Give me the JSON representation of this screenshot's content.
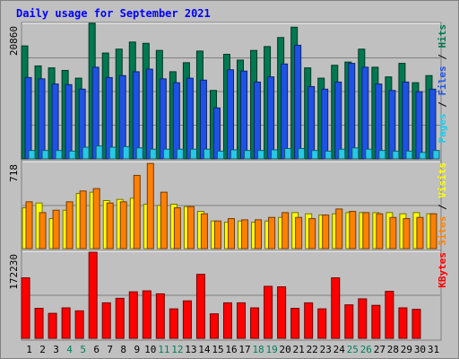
{
  "chart_data": {
    "type": "bar",
    "title": "Daily usage for September 2021",
    "categories": [
      "1",
      "2",
      "3",
      "4",
      "5",
      "6",
      "7",
      "8",
      "9",
      "10",
      "11",
      "12",
      "13",
      "14",
      "15",
      "16",
      "17",
      "18",
      "19",
      "20",
      "21",
      "22",
      "23",
      "24",
      "25",
      "26",
      "27",
      "28",
      "29",
      "30",
      "31"
    ],
    "weekend_days": [
      "4",
      "5",
      "11",
      "12",
      "18",
      "19",
      "25",
      "26"
    ],
    "panels": [
      {
        "id": "hits-files-pages",
        "ymax_label": "20860",
        "ylim": [
          0,
          20860
        ],
        "legend": [
          "Pages",
          "Files",
          "Hits"
        ],
        "series": [
          {
            "name": "Hits",
            "color": "#007850",
            "values": [
              17500,
              14400,
              14100,
              13700,
              12500,
              21000,
              16400,
              17000,
              18100,
              17900,
              16800,
              13500,
              14900,
              16700,
              10600,
              16200,
              15300,
              16800,
              17400,
              18800,
              20400,
              14100,
              12500,
              14500,
              15000,
              17000,
              14200,
              12700,
              14800,
              11800,
              12900
            ]
          },
          {
            "name": "Files",
            "color": "#1e52e6",
            "values": [
              12600,
              12400,
              11600,
              11500,
              10800,
              14200,
              12600,
              12900,
              13500,
              13900,
              12400,
              11800,
              12500,
              12200,
              7900,
              13800,
              13600,
              11900,
              12700,
              14700,
              17600,
              11200,
              10800,
              11900,
              14800,
              14200,
              11600,
              10600,
              11900,
              10400,
              10800
            ]
          },
          {
            "name": "Pages",
            "color": "#28c8e6",
            "values": [
              1300,
              1300,
              1300,
              1200,
              1800,
              2000,
              1800,
              1900,
              1700,
              1500,
              1500,
              1500,
              1500,
              1500,
              1200,
              1400,
              1300,
              1300,
              1400,
              1600,
              1600,
              1300,
              1200,
              1500,
              1700,
              1500,
              1300,
              1200,
              1200,
              1000,
              1300
            ]
          }
        ]
      },
      {
        "id": "visits-sites",
        "ymax_label": "718",
        "ylim": [
          0,
          718
        ],
        "legend": [
          "Sites",
          "Visits"
        ],
        "series": [
          {
            "name": "Visits",
            "color": "#ffff00",
            "values": [
              340,
              380,
              250,
              320,
              460,
              470,
              400,
              410,
              420,
              370,
              360,
              370,
              350,
              310,
              230,
              220,
              230,
              220,
              230,
              260,
              300,
              290,
              280,
              290,
              300,
              300,
              300,
              300,
              290,
              300,
              290
            ]
          },
          {
            "name": "Sites",
            "color": "#ff8000",
            "values": [
              390,
              300,
              320,
              390,
              480,
              500,
              380,
              390,
              610,
              710,
              470,
              340,
              350,
              290,
              230,
              250,
              240,
              240,
              260,
              300,
              260,
              250,
              280,
              330,
              310,
              300,
              290,
              260,
              250,
              260,
              290
            ]
          }
        ]
      },
      {
        "id": "kbytes",
        "ymax_label": "172230",
        "ylim": [
          0,
          172230
        ],
        "legend": [
          "KBytes"
        ],
        "series": [
          {
            "name": "KBytes",
            "color": "#ff0000",
            "values": [
              121000,
              60000,
              50000,
              61000,
              55000,
              172230,
              71000,
              80000,
              93000,
              95000,
              89000,
              59000,
              75000,
              128000,
              49000,
              71000,
              71000,
              61000,
              104000,
              103000,
              60000,
              71000,
              59000,
              121000,
              67000,
              79000,
              66000,
              94000,
              61000,
              58000,
              0
            ]
          }
        ]
      }
    ]
  },
  "colors": {
    "background": "#c0c0c0",
    "title": "#0000ff",
    "weekday_label": "#000000",
    "weekend_label": "#00805c"
  }
}
